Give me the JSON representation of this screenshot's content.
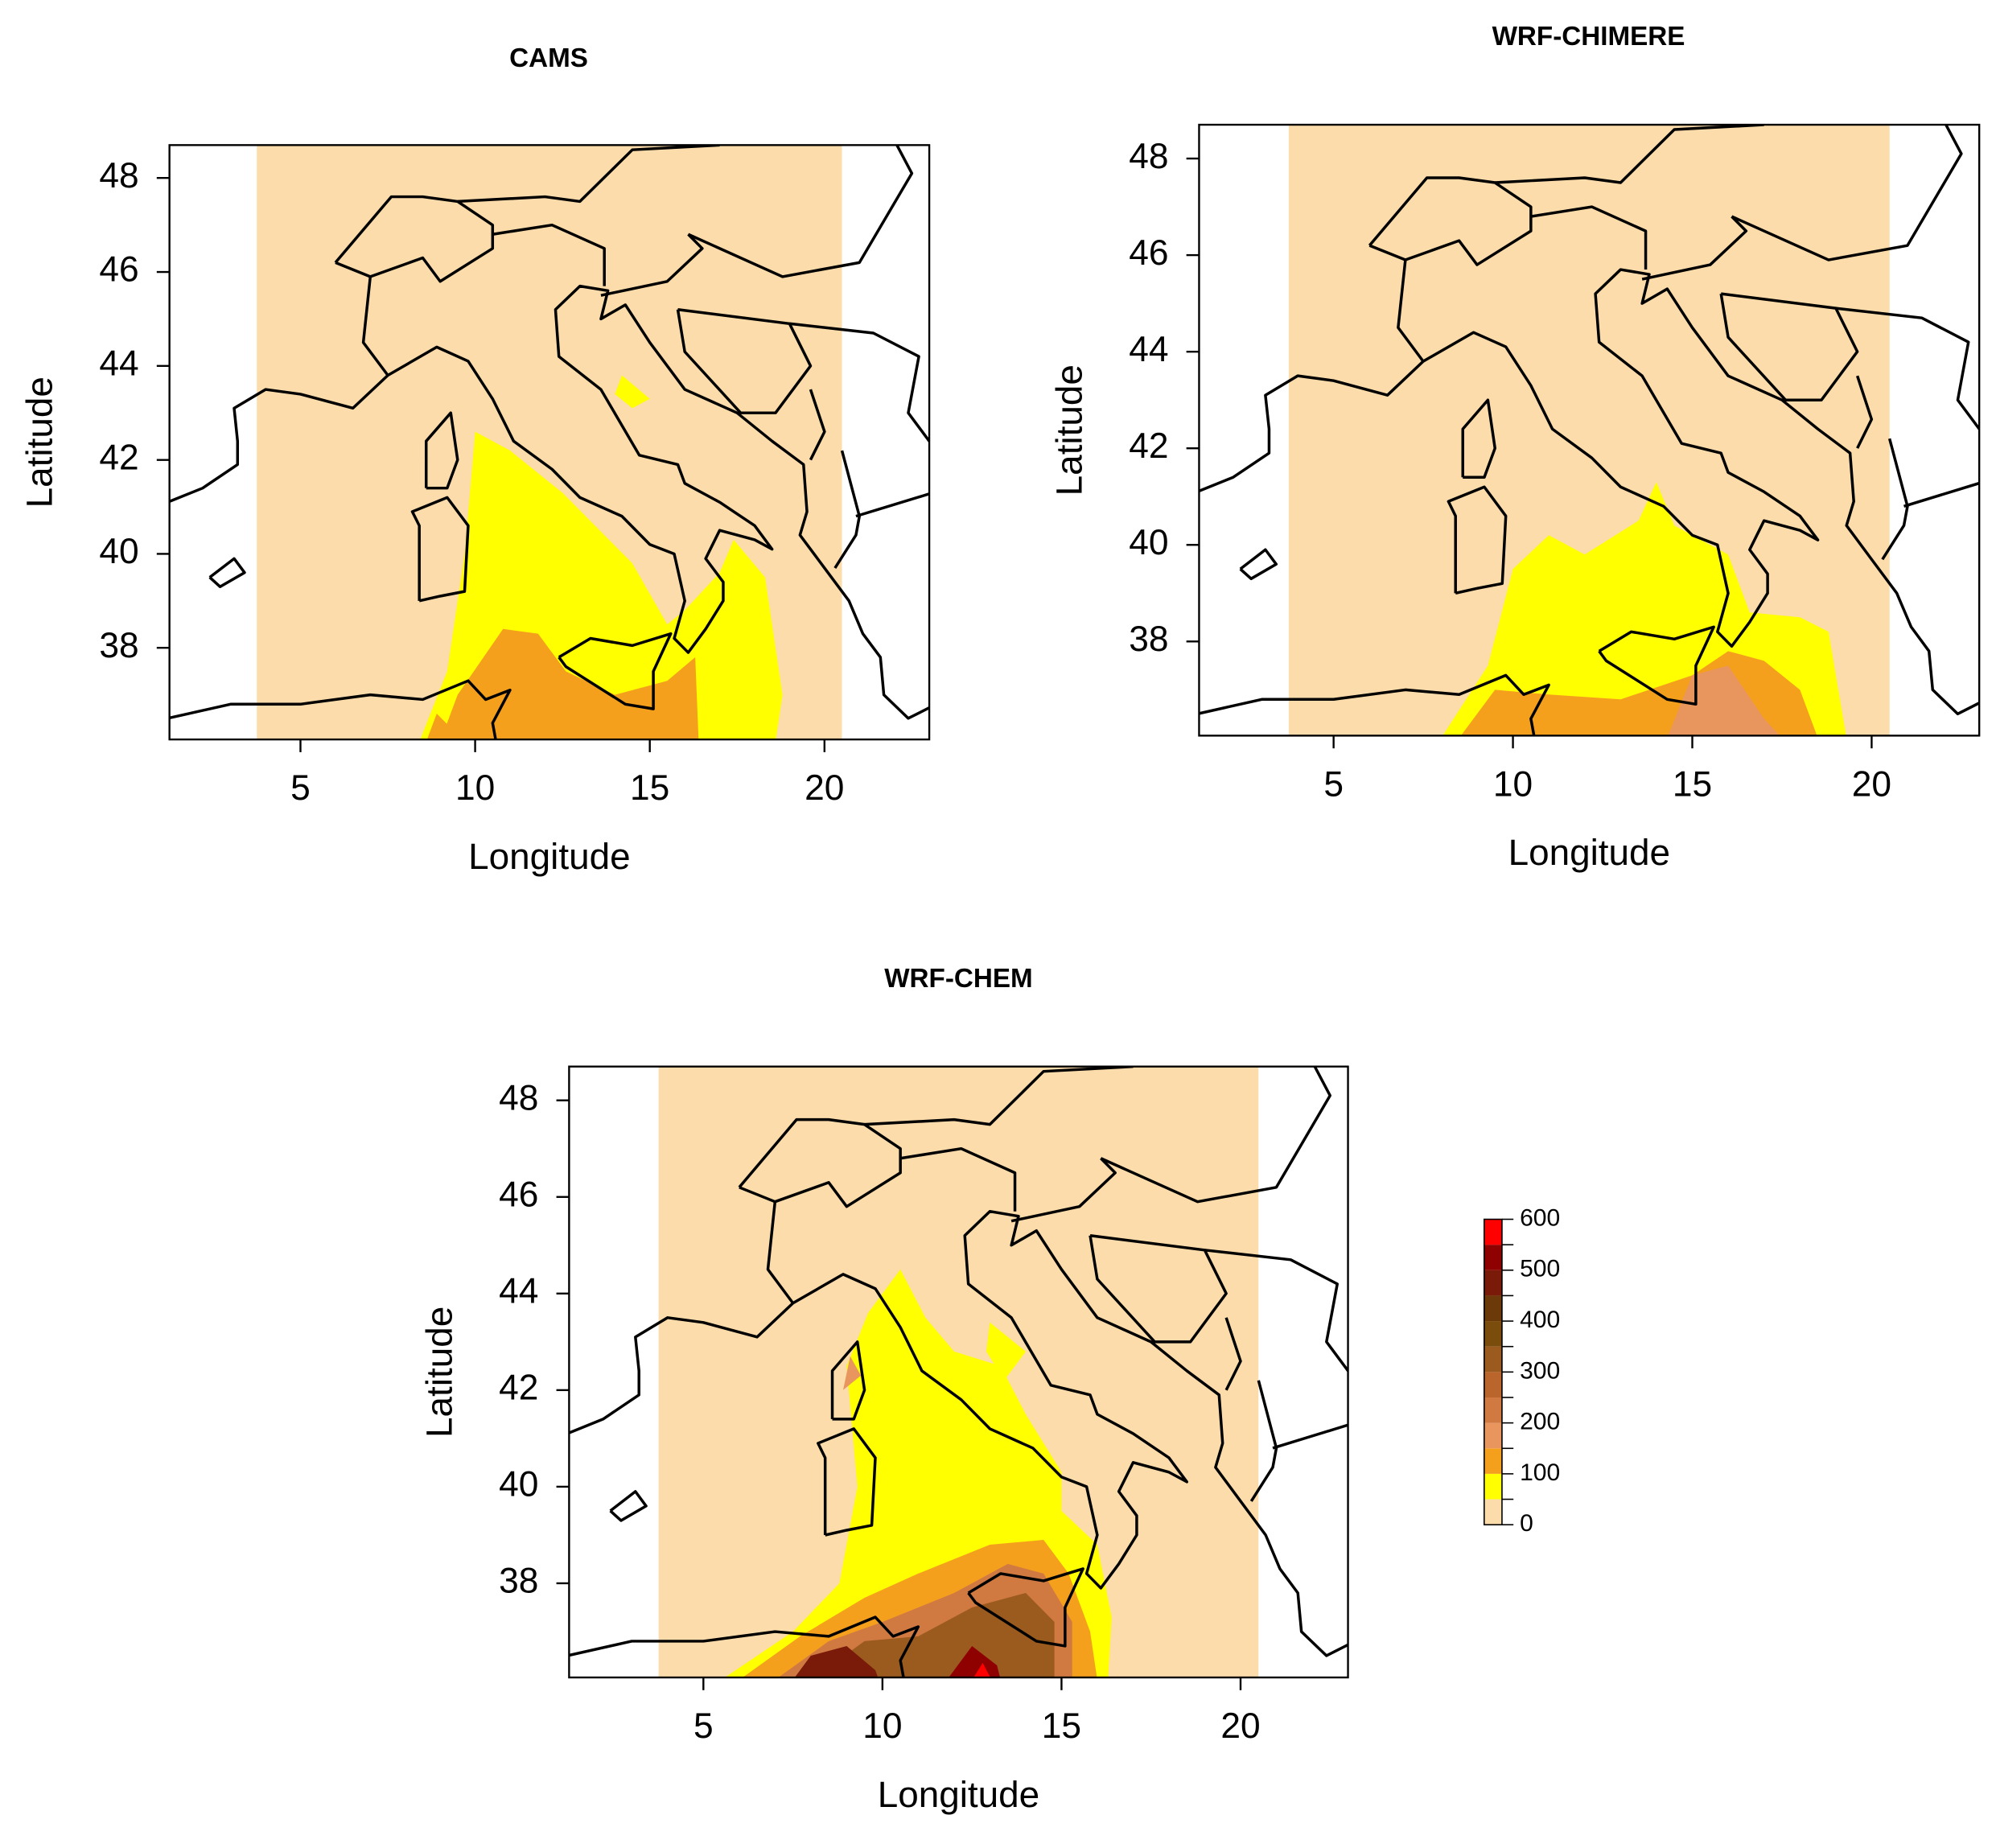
{
  "maps": [
    {
      "title": "CAMS",
      "x_label": "Longitude",
      "y_label": "Latitude",
      "xlim": [
        1.25,
        23.0
      ],
      "ylim": [
        36.05,
        48.7
      ],
      "xticks": [
        5,
        10,
        15,
        20
      ],
      "yticks": [
        38,
        40,
        42,
        44,
        46,
        48
      ]
    },
    {
      "title": "WRF-CHIMERE",
      "x_label": "Longitude",
      "y_label": "Latitude",
      "xlim": [
        1.25,
        23.0
      ],
      "ylim": [
        36.05,
        48.7
      ],
      "xticks": [
        5,
        10,
        15,
        20
      ],
      "yticks": [
        38,
        40,
        42,
        44,
        46,
        48
      ]
    },
    {
      "title": "WRF-CHEM",
      "x_label": "Longitude",
      "y_label": "Latitude",
      "xlim": [
        1.25,
        23.0
      ],
      "ylim": [
        36.05,
        48.7
      ],
      "xticks": [
        5,
        10,
        15,
        20
      ],
      "yticks": [
        38,
        40,
        42,
        44,
        46,
        48
      ]
    }
  ],
  "colorbar": {
    "breaks": [
      0,
      50,
      100,
      150,
      200,
      250,
      300,
      350,
      400,
      450,
      500,
      550,
      600
    ],
    "colors": [
      "#fbdcaa",
      "#ffff00",
      "#f5a01c",
      "#e8955e",
      "#d07a42",
      "#b9652c",
      "#9b5a1e",
      "#7a4d0c",
      "#6b3a08",
      "#7a1a08",
      "#8f0000",
      "#ff0000"
    ],
    "ticks": [
      0,
      100,
      200,
      300,
      400,
      500,
      600
    ]
  }
}
